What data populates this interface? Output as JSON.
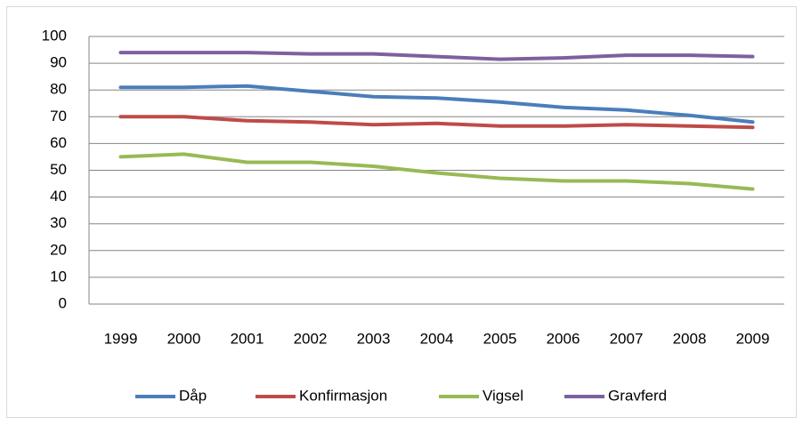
{
  "chart_data": {
    "type": "line",
    "categories": [
      "1999",
      "2000",
      "2001",
      "2002",
      "2003",
      "2004",
      "2005",
      "2006",
      "2007",
      "2008",
      "2009"
    ],
    "series": [
      {
        "name": "Dåp",
        "color": "#4a7ebb",
        "values": [
          81,
          81,
          81.5,
          79.5,
          77.5,
          77,
          75.5,
          73.5,
          72.5,
          70.5,
          68
        ]
      },
      {
        "name": "Konfirmasjon",
        "color": "#be4b48",
        "values": [
          70,
          70,
          68.5,
          68,
          67,
          67.5,
          66.5,
          66.5,
          67,
          66.5,
          66
        ]
      },
      {
        "name": "Vigsel",
        "color": "#98b954",
        "values": [
          55,
          56,
          53,
          53,
          51.5,
          49,
          47,
          46,
          46,
          45,
          43
        ]
      },
      {
        "name": "Gravferd",
        "color": "#7d60a0",
        "values": [
          94,
          94,
          94,
          93.5,
          93.5,
          92.5,
          91.5,
          92,
          93,
          93,
          92.5
        ]
      }
    ],
    "ylim": [
      0,
      100
    ],
    "yticks": [
      0,
      10,
      20,
      30,
      40,
      50,
      60,
      70,
      80,
      90,
      100
    ],
    "grid": true,
    "legend": "bottom"
  }
}
